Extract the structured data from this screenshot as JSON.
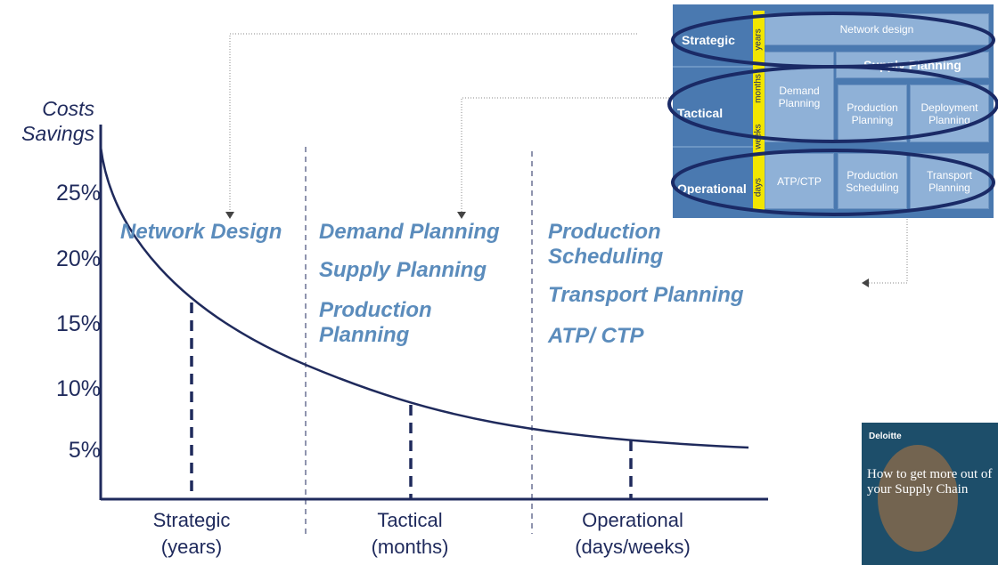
{
  "y_axis": {
    "title": [
      "Costs",
      "Savings"
    ],
    "ticks": [
      "25%",
      "20%",
      "15%",
      "10%",
      "5%"
    ]
  },
  "phases": [
    {
      "label": "Strategic",
      "unit": "(years)",
      "items": [
        "Network Design"
      ]
    },
    {
      "label": "Tactical",
      "unit": "(months)",
      "items": [
        "Demand Planning",
        "Supply Planning",
        "Production Planning"
      ]
    },
    {
      "label": "Operational",
      "unit": "(days/weeks)",
      "items": [
        "Production Scheduling",
        "Transport Planning",
        "ATP/ CTP"
      ]
    }
  ],
  "matrix": {
    "rows": [
      "Strategic",
      "Tactical",
      "Operational"
    ],
    "horizons": [
      "years",
      "months",
      "weeks",
      "days"
    ],
    "cells": [
      "Network design",
      "Supply Planning",
      "Demand Planning",
      "Production Planning",
      "Deployment Planning",
      "ATP/CTP",
      "Production Scheduling",
      "Transport Planning"
    ]
  },
  "thumbnail": {
    "brand": "Deloitte",
    "title": "How to get more out of your Supply Chain"
  }
}
